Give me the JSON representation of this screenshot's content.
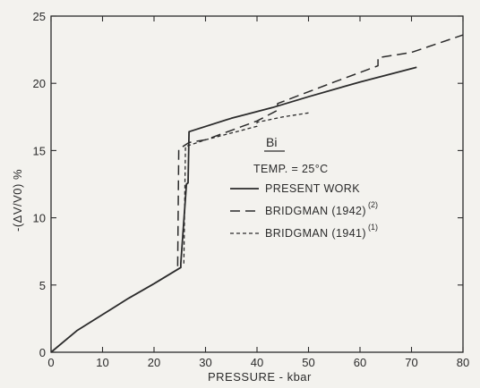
{
  "chart_data": {
    "type": "line",
    "title": "Bi",
    "subtitle": "TEMP. = 25°C",
    "xlabel": "PRESSURE - kbar",
    "ylabel": "-(ΔV/V0) %",
    "xlim": [
      0,
      80
    ],
    "ylim": [
      0,
      25
    ],
    "x_ticks": [
      "0",
      "10",
      "20",
      "30",
      "40",
      "50",
      "60",
      "70",
      "80"
    ],
    "y_ticks": [
      "0",
      "5",
      "10",
      "15",
      "20",
      "25"
    ],
    "grid": false,
    "legend_position": "center",
    "series": [
      {
        "name": "PRESENT WORK",
        "superscript": "",
        "style": "solid",
        "points": [
          [
            0,
            0
          ],
          [
            5,
            1.6
          ],
          [
            10,
            2.8
          ],
          [
            15,
            4.0
          ],
          [
            20,
            5.1
          ],
          [
            25.2,
            6.3
          ],
          [
            25.2,
            6.6
          ],
          [
            26.3,
            12.5
          ],
          [
            26.6,
            12.6
          ],
          [
            26.8,
            16.4
          ],
          [
            35,
            17.4
          ],
          [
            43,
            18.2
          ],
          [
            50,
            19.0
          ],
          [
            60,
            20.1
          ],
          [
            71,
            21.2
          ]
        ]
      },
      {
        "name": "BRIDGMAN (1942)",
        "superscript": "(2)",
        "style": "dashed",
        "points": [
          [
            24.6,
            6.4
          ],
          [
            24.8,
            15.1
          ],
          [
            26.8,
            15.6
          ],
          [
            30,
            15.8
          ],
          [
            40,
            17.2
          ],
          [
            44,
            18.0
          ],
          [
            44,
            18.5
          ],
          [
            55,
            20.1
          ],
          [
            63.5,
            21.3
          ],
          [
            63.5,
            21.9
          ],
          [
            70,
            22.3
          ],
          [
            80,
            23.6
          ]
        ]
      },
      {
        "name": "BRIDGMAN (1941)",
        "superscript": "(1)",
        "style": "dotted",
        "points": [
          [
            25.8,
            6.6
          ],
          [
            26.1,
            15.3
          ],
          [
            30,
            15.8
          ],
          [
            35,
            16.3
          ],
          [
            40,
            16.8
          ],
          [
            40,
            17.1
          ],
          [
            45,
            17.5
          ],
          [
            50,
            17.8
          ]
        ]
      }
    ]
  }
}
